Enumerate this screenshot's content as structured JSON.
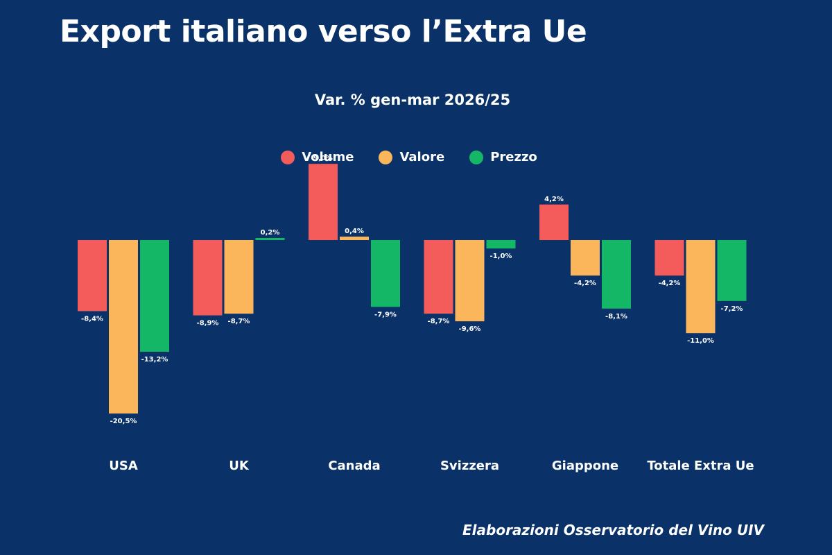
{
  "title": "Export italiano verso l’Extra Ue",
  "credit": "Elaborazioni Osservatorio del Vino UIV",
  "chart_data": {
    "type": "bar",
    "subtitle": "Var. % gen-mar 2026/25",
    "categories": [
      "USA",
      "UK",
      "Canada",
      "Svizzera",
      "Giappone",
      "Totale Extra Ue"
    ],
    "series": [
      {
        "name": "Volume",
        "color": "#f45b5b",
        "values": [
          -8.4,
          -8.9,
          9.0,
          -8.7,
          4.2,
          -4.2
        ],
        "labels": [
          "-8,4%",
          "-8,9%",
          "9,0%",
          "-8,7%",
          "4,2%",
          "-4,2%"
        ]
      },
      {
        "name": "Valore",
        "color": "#fbb65c",
        "values": [
          -20.5,
          -8.7,
          0.4,
          -9.6,
          -4.2,
          -11.0
        ],
        "labels": [
          "-20,5%",
          "-8,7%",
          "0,4%",
          "-9,6%",
          "-4,2%",
          "-11,0%"
        ]
      },
      {
        "name": "Prezzo",
        "color": "#13b765",
        "values": [
          -13.2,
          0.2,
          -7.9,
          -1.0,
          -8.1,
          -7.2
        ],
        "labels": [
          "-13,2%",
          "0,2%",
          "-7,9%",
          "-1,0%",
          "-8,1%",
          "-7,2%"
        ]
      }
    ],
    "ylim": [
      -21,
      9.5
    ],
    "grid": false,
    "legend_position": "top-center"
  }
}
